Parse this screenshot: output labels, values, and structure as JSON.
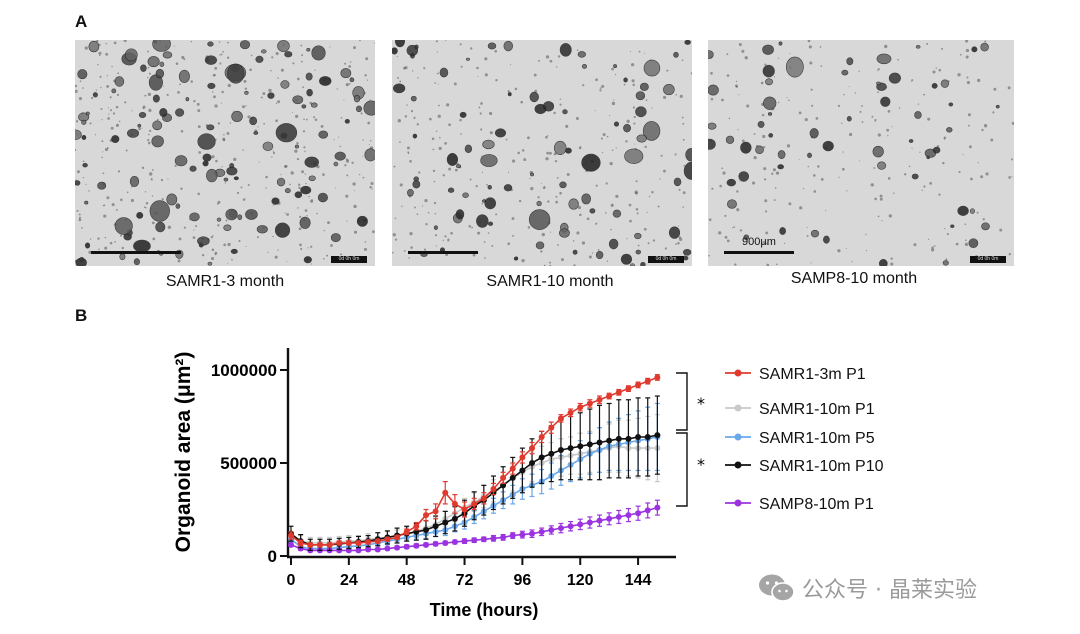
{
  "panels": {
    "a_label": "A",
    "b_label": "B"
  },
  "micrographs": [
    {
      "caption": "SAMR1-3 month",
      "scale_label": "",
      "density": 1.0
    },
    {
      "caption": "SAMR1-10 month",
      "scale_label": "",
      "density": 0.6
    },
    {
      "caption": "SAMP8-10 month",
      "scale_label": "900μm",
      "density": 0.35
    }
  ],
  "stamp_text": "0d 0h 0m",
  "watermark": {
    "text": "公众号 · 晶莱实验",
    "icon": "wechat-icon"
  },
  "chart_data": {
    "type": "line",
    "xlabel": "Time (hours)",
    "ylabel": "Organoid area (μm²)",
    "xlim": [
      0,
      156
    ],
    "ylim": [
      0,
      1000000
    ],
    "xticks": [
      0,
      24,
      48,
      72,
      96,
      120,
      144
    ],
    "yticks": [
      0,
      500000,
      1000000
    ],
    "ytick_labels": [
      "0",
      "500000",
      "1000000"
    ],
    "grid": false,
    "legend_position": "right",
    "x": [
      0,
      4,
      8,
      12,
      16,
      20,
      24,
      28,
      32,
      36,
      40,
      44,
      48,
      52,
      56,
      60,
      64,
      68,
      72,
      76,
      80,
      84,
      88,
      92,
      96,
      100,
      104,
      108,
      112,
      116,
      120,
      124,
      128,
      132,
      136,
      140,
      144,
      148,
      152
    ],
    "series": [
      {
        "name": "SAMR1-3m P1",
        "color": "#e03a2f",
        "values": [
          110000,
          70000,
          60000,
          60000,
          60000,
          70000,
          70000,
          70000,
          75000,
          80000,
          90000,
          100000,
          130000,
          160000,
          220000,
          240000,
          340000,
          280000,
          250000,
          280000,
          310000,
          360000,
          420000,
          470000,
          530000,
          580000,
          640000,
          690000,
          740000,
          770000,
          800000,
          820000,
          840000,
          860000,
          880000,
          900000,
          920000,
          940000,
          960000
        ],
        "errors": [
          20000,
          15000,
          10000,
          10000,
          10000,
          10000,
          10000,
          10000,
          10000,
          10000,
          10000,
          10000,
          15000,
          20000,
          30000,
          40000,
          60000,
          50000,
          40000,
          30000,
          30000,
          30000,
          30000,
          30000,
          30000,
          30000,
          30000,
          30000,
          20000,
          20000,
          20000,
          20000,
          20000,
          15000,
          15000,
          15000,
          15000,
          15000,
          15000
        ]
      },
      {
        "name": "SAMR1-10m P1",
        "color": "#c9c9c9",
        "values": [
          100000,
          80000,
          70000,
          70000,
          70000,
          75000,
          80000,
          80000,
          90000,
          95000,
          100000,
          110000,
          120000,
          135000,
          150000,
          170000,
          200000,
          230000,
          260000,
          290000,
          320000,
          350000,
          380000,
          420000,
          450000,
          480000,
          500000,
          520000,
          530000,
          540000,
          550000,
          560000,
          570000,
          580000,
          590000,
          580000,
          580000,
          580000,
          580000
        ],
        "errors": [
          30000,
          30000,
          30000,
          30000,
          30000,
          30000,
          30000,
          30000,
          30000,
          30000,
          30000,
          30000,
          35000,
          35000,
          40000,
          40000,
          40000,
          45000,
          50000,
          50000,
          60000,
          60000,
          70000,
          70000,
          80000,
          80000,
          90000,
          90000,
          100000,
          100000,
          110000,
          110000,
          120000,
          130000,
          140000,
          150000,
          160000,
          170000,
          180000
        ]
      },
      {
        "name": "SAMR1-10m P5",
        "color": "#6aa8ea",
        "values": [
          90000,
          50000,
          40000,
          40000,
          40000,
          45000,
          50000,
          55000,
          60000,
          70000,
          80000,
          90000,
          100000,
          110000,
          120000,
          130000,
          140000,
          160000,
          180000,
          210000,
          240000,
          270000,
          300000,
          330000,
          360000,
          380000,
          400000,
          430000,
          460000,
          490000,
          520000,
          550000,
          570000,
          590000,
          600000,
          610000,
          620000,
          630000,
          640000
        ],
        "errors": [
          15000,
          15000,
          15000,
          15000,
          15000,
          15000,
          15000,
          15000,
          15000,
          15000,
          20000,
          20000,
          20000,
          20000,
          25000,
          25000,
          30000,
          30000,
          35000,
          35000,
          40000,
          40000,
          45000,
          50000,
          55000,
          60000,
          65000,
          70000,
          80000,
          90000,
          100000,
          110000,
          120000,
          130000,
          140000,
          150000,
          160000,
          170000,
          180000
        ]
      },
      {
        "name": "SAMR1-10m P10",
        "color": "#111111",
        "values": [
          120000,
          80000,
          60000,
          60000,
          60000,
          65000,
          70000,
          75000,
          80000,
          90000,
          100000,
          110000,
          120000,
          130000,
          140000,
          160000,
          180000,
          200000,
          230000,
          270000,
          300000,
          340000,
          380000,
          420000,
          460000,
          500000,
          530000,
          550000,
          570000,
          580000,
          590000,
          600000,
          610000,
          620000,
          630000,
          630000,
          640000,
          640000,
          650000
        ],
        "errors": [
          40000,
          35000,
          30000,
          30000,
          30000,
          30000,
          30000,
          30000,
          30000,
          35000,
          35000,
          40000,
          40000,
          45000,
          50000,
          55000,
          60000,
          65000,
          70000,
          75000,
          80000,
          90000,
          100000,
          110000,
          120000,
          130000,
          140000,
          150000,
          160000,
          170000,
          180000,
          190000,
          200000,
          200000,
          210000,
          210000,
          210000,
          210000,
          210000
        ]
      },
      {
        "name": "SAMP8-10m P1",
        "color": "#9b33e0",
        "values": [
          60000,
          40000,
          30000,
          30000,
          30000,
          30000,
          30000,
          30000,
          35000,
          35000,
          40000,
          45000,
          50000,
          55000,
          60000,
          65000,
          70000,
          75000,
          80000,
          85000,
          90000,
          95000,
          100000,
          110000,
          115000,
          120000,
          130000,
          140000,
          150000,
          160000,
          170000,
          180000,
          190000,
          200000,
          210000,
          220000,
          230000,
          245000,
          260000
        ],
        "errors": [
          10000,
          8000,
          8000,
          8000,
          8000,
          8000,
          8000,
          8000,
          8000,
          8000,
          8000,
          8000,
          10000,
          10000,
          10000,
          10000,
          10000,
          10000,
          12000,
          12000,
          12000,
          15000,
          15000,
          15000,
          18000,
          20000,
          20000,
          22000,
          25000,
          25000,
          28000,
          30000,
          30000,
          32000,
          35000,
          35000,
          38000,
          40000,
          40000
        ]
      }
    ],
    "significance": [
      {
        "label": "*",
        "between": [
          "SAMR1-3m P1",
          "SAMR1-10m P5"
        ]
      },
      {
        "label": "*",
        "between": [
          "SAMR1-10m P5",
          "SAMP8-10m P1"
        ]
      }
    ]
  }
}
